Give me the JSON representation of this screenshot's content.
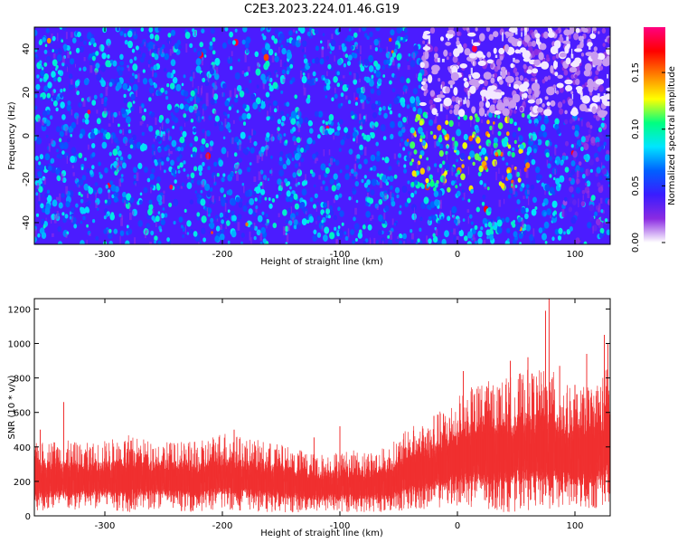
{
  "title": "C2E3.2023.224.01.46.G19",
  "chart_data": [
    {
      "type": "heatmap",
      "xlabel": "Height of straight line (km)",
      "ylabel": "Frequency (Hz)",
      "xlim": [
        -360,
        130
      ],
      "ylim": [
        -50,
        50
      ],
      "xticks": [
        -300,
        -200,
        -100,
        0,
        100
      ],
      "yticks": [
        -40,
        -20,
        0,
        20,
        40
      ],
      "colorbar": {
        "label": "Normalized spectral amplitude",
        "range": [
          0,
          0.19
        ],
        "ticks": [
          0.0,
          0.05,
          0.1,
          0.15
        ],
        "tick_labels": [
          "0.00",
          "0.05",
          "0.10",
          "0.15"
        ],
        "colormap": [
          "#ffffff",
          "#8a2be2",
          "#3a1cff",
          "#0060ff",
          "#00e5ff",
          "#00ff80",
          "#ffff00",
          "#ff8000",
          "#ff0000",
          "#ff0080"
        ]
      },
      "background_color": "#4b1cff",
      "high_amplitude_region": {
        "x_range": [
          -40,
          60
        ],
        "y_range": [
          -25,
          10
        ],
        "peak_value": 0.17
      },
      "low_amplitude_region": {
        "x_range": [
          -30,
          130
        ],
        "y_range": [
          10,
          50
        ],
        "peak_value": 0.01
      }
    },
    {
      "type": "line",
      "xlabel": "Height of straight line (km)",
      "ylabel": "SNR (10 * v/v)",
      "xlim": [
        -360,
        130
      ],
      "ylim": [
        0,
        1260
      ],
      "xticks": [
        -300,
        -200,
        -100,
        0,
        100
      ],
      "yticks": [
        0,
        200,
        400,
        600,
        800,
        1000,
        1200
      ],
      "color": "#f03030",
      "series": [
        {
          "x": [
            -360,
            -340,
            -320,
            -300,
            -280,
            -260,
            -240,
            -220,
            -200,
            -180,
            -160,
            -140,
            -120,
            -100,
            -80,
            -60,
            -40,
            -20,
            0,
            20,
            40,
            60,
            80,
            100,
            120,
            130
          ],
          "upper": [
            420,
            450,
            420,
            440,
            470,
            440,
            430,
            430,
            500,
            450,
            430,
            400,
            360,
            380,
            380,
            400,
            520,
            580,
            700,
            780,
            800,
            850,
            850,
            720,
            800,
            900
          ],
          "lower": [
            30,
            20,
            30,
            40,
            20,
            40,
            30,
            20,
            30,
            30,
            20,
            20,
            20,
            20,
            20,
            20,
            30,
            40,
            60,
            30,
            20,
            30,
            40,
            30,
            40,
            60
          ],
          "peaks": [
            [
              -355,
              500
            ],
            [
              -335,
              660
            ],
            [
              -190,
              500
            ],
            [
              -122,
              455
            ],
            [
              -100,
              520
            ],
            [
              -20,
              580
            ],
            [
              5,
              670
            ],
            [
              5,
              840
            ],
            [
              25,
              750
            ],
            [
              45,
              900
            ],
            [
              60,
              920
            ],
            [
              75,
              1190
            ],
            [
              78,
              1260
            ],
            [
              87,
              870
            ],
            [
              100,
              760
            ],
            [
              110,
              940
            ],
            [
              125,
              1050
            ],
            [
              128,
              1000
            ]
          ]
        }
      ]
    }
  ]
}
